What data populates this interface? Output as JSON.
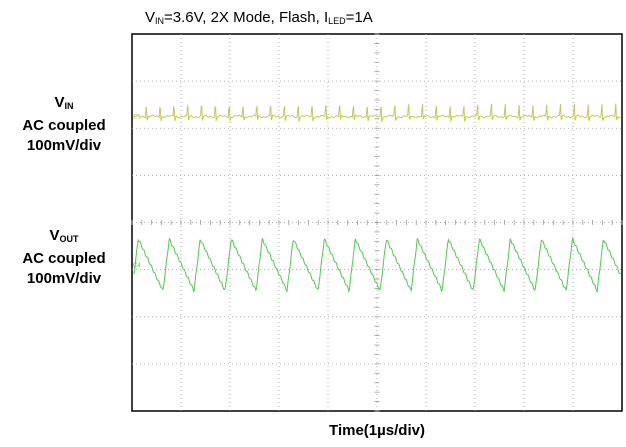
{
  "title": {
    "v_symbol": "V",
    "v_subscript": "IN",
    "part1": "=3.6V, 2X Mode, Flash, I",
    "i_subscript": "LED",
    "part2": "=1A"
  },
  "channels": [
    {
      "symbol": "V",
      "subscript": "IN",
      "coupling": "AC coupled",
      "scale": "100mV/div",
      "marker": "C1",
      "color": "#c8c85a"
    },
    {
      "symbol": "V",
      "subscript": "OUT",
      "coupling": "AC coupled",
      "scale": "100mV/div",
      "marker": "C4",
      "color": "#4ccc4c"
    }
  ],
  "xlabel": "Time(1µs/div)",
  "chart_data": {
    "type": "line",
    "title": "VIN=3.6V, 2X Mode, Flash, ILED=1A",
    "xlabel": "Time(1µs/div)",
    "ylabel": "",
    "grid": true,
    "divisions_x": 10,
    "divisions_y": 8,
    "xlim": [
      0,
      10
    ],
    "ylim": [
      -4,
      4
    ],
    "series": [
      {
        "name": "VIN",
        "color": "#c8c85a",
        "offset_div": 2.25,
        "spikes_per_div": 3.55,
        "spike_amplitude_div": 0.35
      },
      {
        "name": "VOUT",
        "color": "#4ccc4c",
        "offset_div": -0.9,
        "periods_per_div": 1.58,
        "amplitude_div": 0.55
      }
    ]
  }
}
